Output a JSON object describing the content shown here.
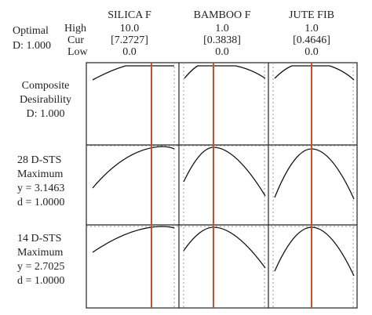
{
  "header": {
    "optimal": "Optimal",
    "d": "D: 1.000",
    "row_labels": [
      "High",
      "Cur",
      "Low"
    ]
  },
  "factors": [
    {
      "name": "SILICA F",
      "high": "10.0",
      "cur": "[7.2727]",
      "low": "0.0"
    },
    {
      "name": "BAMBOO F",
      "high": "1.0",
      "cur": "[0.3838]",
      "low": "0.0"
    },
    {
      "name": "JUTE FIB",
      "high": "1.0",
      "cur": "[0.4646]",
      "low": "0.0"
    }
  ],
  "responses": [
    {
      "lines": [
        "Composite",
        "Desirability",
        "D: 1.000"
      ]
    },
    {
      "lines": [
        "28 D-STS",
        "Maximum",
        "y = 3.1463",
        "d = 1.0000"
      ]
    },
    {
      "lines": [
        "14 D-STS",
        "Maximum",
        "y = 2.7025",
        "d = 1.0000"
      ]
    }
  ]
}
